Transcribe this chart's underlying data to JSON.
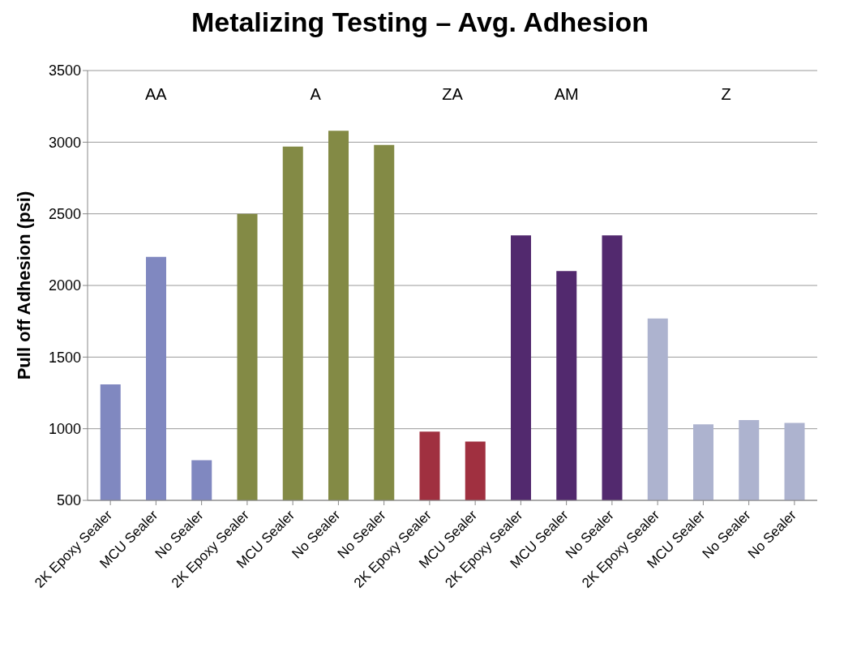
{
  "chart_data": {
    "type": "bar",
    "title": "Metalizing Testing – Avg. Adhesion",
    "ylabel": "Pull off Adhesion (psi)",
    "categories": [
      "2K Epoxy Sealer",
      "MCU Sealer",
      "No Sealer",
      "2K Epoxy Sealer",
      "MCU Sealer",
      "No Sealer",
      "No Sealer",
      "2K Epoxy Sealer",
      "MCU Sealer",
      "2K Epoxy Sealer",
      "MCU Sealer",
      "No Sealer",
      "2K Epoxy Sealer",
      "MCU Sealer",
      "No Sealer",
      "No Sealer"
    ],
    "values": [
      1310,
      2200,
      780,
      2500,
      2970,
      3080,
      2980,
      980,
      910,
      2350,
      2100,
      2350,
      1770,
      1030,
      1060,
      1040
    ],
    "colors": [
      "#8088c0",
      "#8088c0",
      "#8088c0",
      "#838a45",
      "#838a45",
      "#838a45",
      "#838a45",
      "#a03040",
      "#a03040",
      "#52296e",
      "#52296e",
      "#52296e",
      "#adb3cf",
      "#adb3cf",
      "#adb3cf",
      "#adb3cf"
    ],
    "annotations": [
      "AA",
      "A",
      "ZA",
      "AM",
      "Z"
    ],
    "ylim": [
      500,
      3500
    ],
    "yticks": [
      500,
      1000,
      1500,
      2000,
      2500,
      3000,
      3500
    ],
    "grid": "y"
  }
}
